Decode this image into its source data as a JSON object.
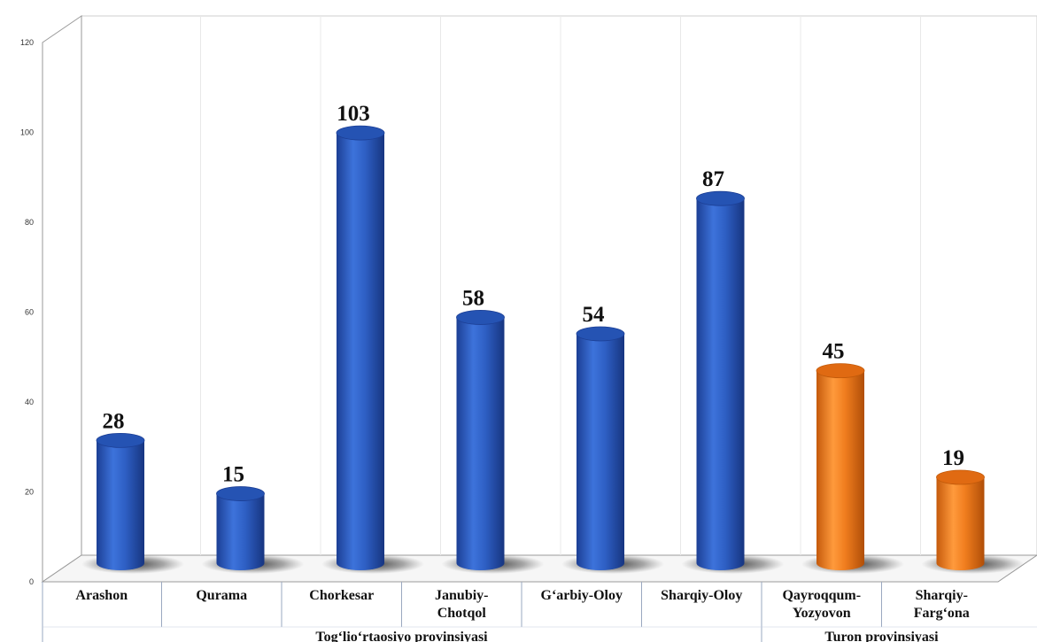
{
  "chart_data": {
    "type": "bar",
    "categories": [
      "Arashon",
      "Qurama",
      "Chorkesar",
      "Janubiy-Chotqol",
      "G‘arbiy-Oloy",
      "Sharqiy-Oloy",
      "Qayroqqum-Yozyovon",
      "Sharqiy-Farg‘ona"
    ],
    "category_lines": [
      [
        "Arashon"
      ],
      [
        "Qurama"
      ],
      [
        "Chorkesar"
      ],
      [
        "Janubiy-",
        "Chotqol"
      ],
      [
        "G‘arbiy-Oloy"
      ],
      [
        "Sharqiy-Oloy"
      ],
      [
        "Qayroqqum-",
        "Yozyovon"
      ],
      [
        "Sharqiy-",
        "Farg‘ona"
      ]
    ],
    "values": [
      28,
      15,
      103,
      58,
      54,
      87,
      45,
      19
    ],
    "value_labels": [
      "28",
      "15",
      "103",
      "58",
      "54",
      "87",
      "45",
      "19"
    ],
    "bar_colors": [
      "#2e5fc4",
      "#2e5fc4",
      "#2e5fc4",
      "#2e5fc4",
      "#2e5fc4",
      "#2e5fc4",
      "#f07d1e",
      "#f07d1e"
    ],
    "groups": [
      {
        "name": "Tog‘lio‘rtaosiyo provinsiyasi",
        "start": 0,
        "end": 5
      },
      {
        "name": "Turon provinsiyasi",
        "start": 6,
        "end": 7
      }
    ],
    "y_ticks": [
      "0",
      "20",
      "40",
      "60",
      "80",
      "100",
      "120"
    ],
    "ylim": [
      0,
      120
    ],
    "grid": false,
    "legend": "none",
    "title": "",
    "xlabel": "",
    "ylabel": ""
  }
}
